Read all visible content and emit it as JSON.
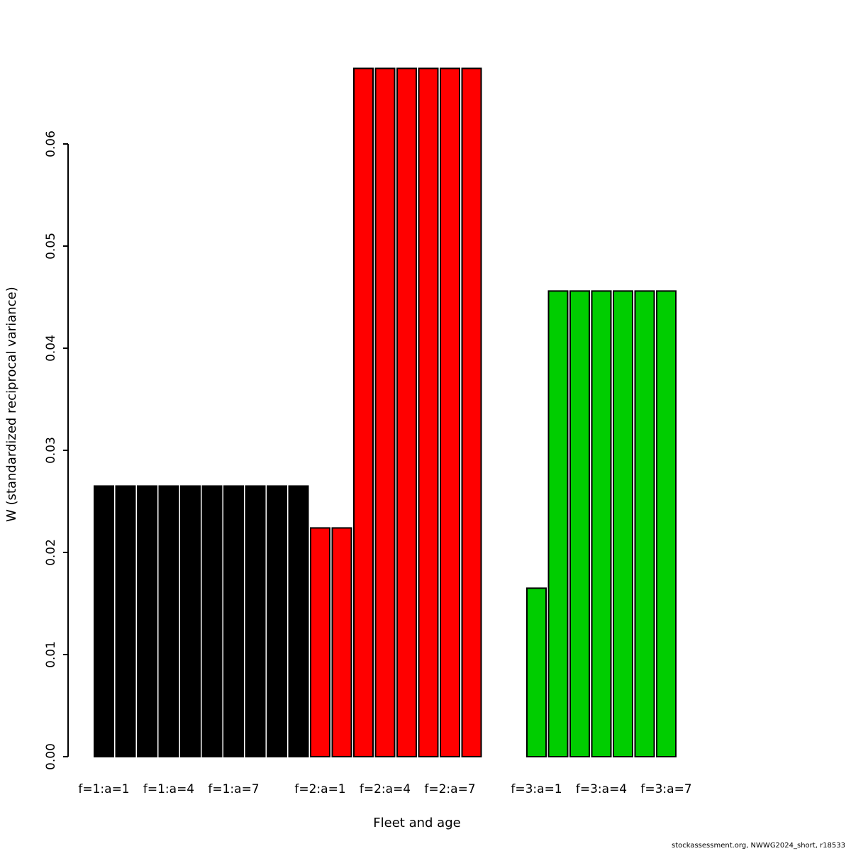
{
  "chart_data": {
    "type": "bar",
    "xlabel": "Fleet and age",
    "ylabel": "W (standardized reciprocal variance)",
    "ylim": [
      0,
      0.068
    ],
    "grid": false,
    "legend": "none",
    "yticks": [
      "0.00",
      "0.01",
      "0.02",
      "0.03",
      "0.04",
      "0.05",
      "0.06"
    ],
    "bars": [
      {
        "label": "f=1:a=1",
        "fleet": 1,
        "age": 1,
        "value": 0.0265,
        "color": "#000000"
      },
      {
        "label": "f=1:a=2",
        "fleet": 1,
        "age": 2,
        "value": 0.0265,
        "color": "#000000"
      },
      {
        "label": "f=1:a=3",
        "fleet": 1,
        "age": 3,
        "value": 0.0265,
        "color": "#000000"
      },
      {
        "label": "f=1:a=4",
        "fleet": 1,
        "age": 4,
        "value": 0.0265,
        "color": "#000000"
      },
      {
        "label": "f=1:a=5",
        "fleet": 1,
        "age": 5,
        "value": 0.0265,
        "color": "#000000"
      },
      {
        "label": "f=1:a=6",
        "fleet": 1,
        "age": 6,
        "value": 0.0265,
        "color": "#000000"
      },
      {
        "label": "f=1:a=7",
        "fleet": 1,
        "age": 7,
        "value": 0.0265,
        "color": "#000000"
      },
      {
        "label": "f=1:a=8",
        "fleet": 1,
        "age": 8,
        "value": 0.0265,
        "color": "#000000"
      },
      {
        "label": "f=1:a=9",
        "fleet": 1,
        "age": 9,
        "value": 0.0265,
        "color": "#000000"
      },
      {
        "label": "f=1:a=10",
        "fleet": 1,
        "age": 10,
        "value": 0.0265,
        "color": "#000000"
      },
      {
        "label": "f=2:a=1",
        "fleet": 2,
        "age": 1,
        "value": 0.0224,
        "color": "#FF0000"
      },
      {
        "label": "f=2:a=2",
        "fleet": 2,
        "age": 2,
        "value": 0.0224,
        "color": "#FF0000"
      },
      {
        "label": "f=2:a=3",
        "fleet": 2,
        "age": 3,
        "value": 0.0674,
        "color": "#FF0000"
      },
      {
        "label": "f=2:a=4",
        "fleet": 2,
        "age": 4,
        "value": 0.0674,
        "color": "#FF0000"
      },
      {
        "label": "f=2:a=5",
        "fleet": 2,
        "age": 5,
        "value": 0.0674,
        "color": "#FF0000"
      },
      {
        "label": "f=2:a=6",
        "fleet": 2,
        "age": 6,
        "value": 0.0674,
        "color": "#FF0000"
      },
      {
        "label": "f=2:a=7",
        "fleet": 2,
        "age": 7,
        "value": 0.0674,
        "color": "#FF0000"
      },
      {
        "label": "f=2:a=8",
        "fleet": 2,
        "age": 8,
        "value": 0.0674,
        "color": "#FF0000"
      },
      null,
      null,
      {
        "label": "f=3:a=1",
        "fleet": 3,
        "age": 1,
        "value": 0.0165,
        "color": "#00CD00"
      },
      {
        "label": "f=3:a=2",
        "fleet": 3,
        "age": 2,
        "value": 0.0456,
        "color": "#00CD00"
      },
      {
        "label": "f=3:a=3",
        "fleet": 3,
        "age": 3,
        "value": 0.0456,
        "color": "#00CD00"
      },
      {
        "label": "f=3:a=4",
        "fleet": 3,
        "age": 4,
        "value": 0.0456,
        "color": "#00CD00"
      },
      {
        "label": "f=3:a=5",
        "fleet": 3,
        "age": 5,
        "value": 0.0456,
        "color": "#00CD00"
      },
      {
        "label": "f=3:a=6",
        "fleet": 3,
        "age": 6,
        "value": 0.0456,
        "color": "#00CD00"
      },
      {
        "label": "f=3:a=7",
        "fleet": 3,
        "age": 7,
        "value": 0.0456,
        "color": "#00CD00"
      }
    ],
    "xtick_labels": [
      {
        "slot": 0,
        "text": "f=1:a=1"
      },
      {
        "slot": 3,
        "text": "f=1:a=4"
      },
      {
        "slot": 6,
        "text": "f=1:a=7"
      },
      {
        "slot": 10,
        "text": "f=2:a=1"
      },
      {
        "slot": 13,
        "text": "f=2:a=4"
      },
      {
        "slot": 16,
        "text": "f=2:a=7"
      },
      {
        "slot": 20,
        "text": "f=3:a=1"
      },
      {
        "slot": 23,
        "text": "f=3:a=4"
      },
      {
        "slot": 26,
        "text": "f=3:a=7"
      }
    ],
    "series_colors": {
      "fleet1": "#000000",
      "fleet2": "#FF0000",
      "fleet3": "#00CD00"
    }
  },
  "footer": {
    "credit": "stockassessment.org, NWWG2024_short, r18533"
  }
}
